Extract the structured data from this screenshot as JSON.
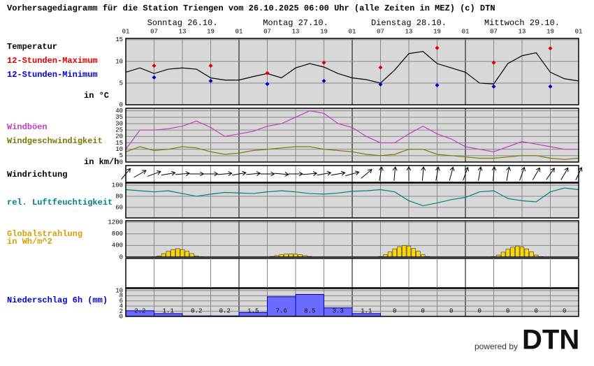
{
  "header": {
    "title": "Vorhersagediagramm für die Station Triengen vom 26.10.2025 06:00 Uhr (alle Zeiten in MEZ)   (c) DTN",
    "days": [
      "Sonntag 26.10.",
      "Montag 27.10.",
      "Dienstag 28.10.",
      "Mittwoch 29.10."
    ]
  },
  "chart_data": [
    {
      "type": "line",
      "unit": "in °C",
      "xlim": [
        0,
        96
      ],
      "xticks": [
        {
          "value": 0,
          "label": "01"
        },
        {
          "value": 6,
          "label": "07"
        },
        {
          "value": 12,
          "label": "13"
        },
        {
          "value": 18,
          "label": "19"
        },
        {
          "value": 24,
          "label": "01"
        },
        {
          "value": 30,
          "label": "07"
        },
        {
          "value": 36,
          "label": "13"
        },
        {
          "value": 42,
          "label": "19"
        },
        {
          "value": 48,
          "label": "01"
        },
        {
          "value": 54,
          "label": "07"
        },
        {
          "value": 60,
          "label": "13"
        },
        {
          "value": 66,
          "label": "19"
        },
        {
          "value": 72,
          "label": "01"
        },
        {
          "value": 78,
          "label": "07"
        },
        {
          "value": 84,
          "label": "13"
        },
        {
          "value": 90,
          "label": "19"
        },
        {
          "value": 96,
          "label": "01"
        }
      ],
      "ylim": [
        0,
        15.3
      ],
      "yticks": [
        0,
        5,
        10,
        15
      ],
      "series": [
        {
          "name": "Temperatur",
          "color": "#000000",
          "marker": "line",
          "x": [
            0,
            3,
            6,
            9,
            12,
            15,
            18,
            21,
            24,
            27,
            30,
            33,
            36,
            39,
            42,
            45,
            48,
            51,
            54,
            57,
            60,
            63,
            66,
            69,
            72,
            75,
            78,
            81,
            84,
            87,
            90,
            93,
            96
          ],
          "values": [
            7.5,
            8.5,
            7.2,
            8.2,
            8.5,
            8.2,
            6.2,
            5.7,
            5.7,
            6.5,
            7.2,
            6.2,
            8.5,
            9.5,
            8.7,
            7.2,
            6.2,
            5.8,
            5,
            8,
            11.8,
            12.3,
            9.5,
            8.5,
            7.5,
            5,
            4.8,
            9.5,
            11.3,
            12,
            7.5,
            6,
            5.5
          ]
        },
        {
          "name": "12-Stunden-Maximum",
          "color": "#dd0000",
          "marker": "diamond",
          "x": [
            6,
            18,
            30,
            42,
            54,
            66,
            78,
            90
          ],
          "values": [
            9,
            9,
            7.3,
            9.7,
            8.6,
            13.1,
            9.7,
            13
          ]
        },
        {
          "name": "12-Stunden-Minimum",
          "color": "#0000cc",
          "marker": "diamond",
          "x": [
            6,
            18,
            30,
            42,
            54,
            66,
            78,
            90
          ],
          "values": [
            6.3,
            5.5,
            4.8,
            5.5,
            4.7,
            4.5,
            4.2,
            4.2
          ]
        }
      ]
    },
    {
      "type": "line",
      "unit": "in km/h",
      "ylim": [
        0,
        42
      ],
      "yticks": [
        0,
        5,
        10,
        15,
        20,
        25,
        30,
        35,
        40
      ],
      "series": [
        {
          "name": "Windböen",
          "color": "#c040c0",
          "marker": "line",
          "x": [
            0,
            3,
            6,
            9,
            12,
            15,
            18,
            21,
            24,
            27,
            30,
            33,
            36,
            39,
            42,
            45,
            48,
            51,
            54,
            57,
            60,
            63,
            66,
            69,
            72,
            75,
            78,
            81,
            84,
            87,
            90,
            93,
            96
          ],
          "values": [
            10,
            25,
            25,
            26,
            28,
            32,
            27,
            20,
            22,
            24,
            28,
            30,
            35,
            40,
            38,
            30,
            27,
            20,
            15,
            15,
            22,
            28,
            22,
            18,
            12,
            10,
            8,
            12,
            16,
            14,
            12,
            10,
            10
          ]
        },
        {
          "name": "Windgeschwindigkeit",
          "color": "#7a7a00",
          "marker": "line",
          "x": [
            0,
            3,
            6,
            9,
            12,
            15,
            18,
            21,
            24,
            27,
            30,
            33,
            36,
            39,
            42,
            45,
            48,
            51,
            54,
            57,
            60,
            63,
            66,
            69,
            72,
            75,
            78,
            81,
            84,
            87,
            90,
            93,
            96
          ],
          "values": [
            8,
            12,
            9,
            10,
            12,
            11,
            8,
            6,
            7,
            9,
            10,
            11,
            12,
            12,
            10,
            9,
            8,
            6,
            5,
            6,
            10,
            10,
            6,
            5,
            4,
            3,
            3,
            4,
            5,
            5,
            3,
            2,
            3
          ]
        }
      ]
    },
    {
      "type": "arrows",
      "title": "Windrichtung",
      "x": [
        0,
        3,
        6,
        9,
        12,
        15,
        18,
        21,
        24,
        27,
        30,
        33,
        36,
        39,
        42,
        45,
        48,
        51,
        54,
        57,
        60,
        63,
        66,
        69,
        72,
        75,
        78,
        81,
        84,
        87,
        90,
        93,
        96
      ],
      "values": [
        220,
        240,
        250,
        260,
        265,
        270,
        270,
        265,
        260,
        265,
        270,
        275,
        270,
        265,
        260,
        260,
        255,
        230,
        190,
        185,
        180,
        185,
        190,
        195,
        200,
        190,
        185,
        190,
        200,
        210,
        215,
        210,
        205
      ]
    },
    {
      "type": "line",
      "ylim": [
        41,
        104
      ],
      "yticks": [
        60,
        80,
        100
      ],
      "series": [
        {
          "name": "rel. Luftfeuchtigkeit",
          "color": "#008080",
          "marker": "line",
          "x": [
            0,
            3,
            6,
            9,
            12,
            15,
            18,
            21,
            24,
            27,
            30,
            33,
            36,
            39,
            42,
            45,
            48,
            51,
            54,
            57,
            60,
            63,
            66,
            69,
            72,
            75,
            78,
            81,
            84,
            87,
            90,
            93,
            96
          ],
          "values": [
            92,
            90,
            88,
            90,
            85,
            80,
            84,
            87,
            86,
            85,
            88,
            90,
            88,
            85,
            84,
            86,
            89,
            90,
            92,
            88,
            72,
            63,
            68,
            74,
            78,
            88,
            90,
            76,
            72,
            70,
            88,
            95,
            92
          ]
        }
      ]
    },
    {
      "type": "bar",
      "title": "Globalstrahlung",
      "unit": "in Wh/m^2",
      "color": "#ffd700",
      "ylim": [
        0,
        1250
      ],
      "yticks": [
        0,
        400,
        800,
        1200
      ],
      "x": [
        6,
        7,
        8,
        9,
        10,
        11,
        12,
        13,
        14,
        15,
        16,
        30,
        31,
        32,
        33,
        34,
        35,
        36,
        37,
        38,
        39,
        40,
        54,
        55,
        56,
        57,
        58,
        59,
        60,
        61,
        62,
        63,
        64,
        78,
        79,
        80,
        81,
        82,
        83,
        84,
        85,
        86,
        87,
        88
      ],
      "values": [
        10,
        40,
        120,
        200,
        260,
        290,
        260,
        200,
        120,
        40,
        10,
        5,
        20,
        50,
        80,
        100,
        110,
        100,
        80,
        50,
        20,
        5,
        20,
        80,
        180,
        280,
        360,
        400,
        380,
        300,
        200,
        80,
        20,
        15,
        70,
        170,
        270,
        340,
        380,
        350,
        280,
        180,
        70,
        15
      ]
    },
    {
      "type": "histogram",
      "title": "Niederschlag 6h (mm)",
      "color": "#6b6bff",
      "ylim": [
        0,
        10.8
      ],
      "yticks": [
        0,
        2,
        4,
        6,
        8,
        10
      ],
      "bins": [
        0,
        6,
        12,
        18,
        24,
        30,
        36,
        42,
        48,
        54,
        60,
        66,
        72,
        78,
        84,
        90,
        96
      ],
      "values": [
        2.2,
        1.1,
        0.2,
        0.2,
        1.5,
        7.6,
        8.5,
        3.3,
        1.1,
        0,
        0,
        0,
        0,
        0,
        0,
        0
      ]
    }
  ],
  "footer": {
    "powered_by": "powered by",
    "logo": "DTN"
  }
}
